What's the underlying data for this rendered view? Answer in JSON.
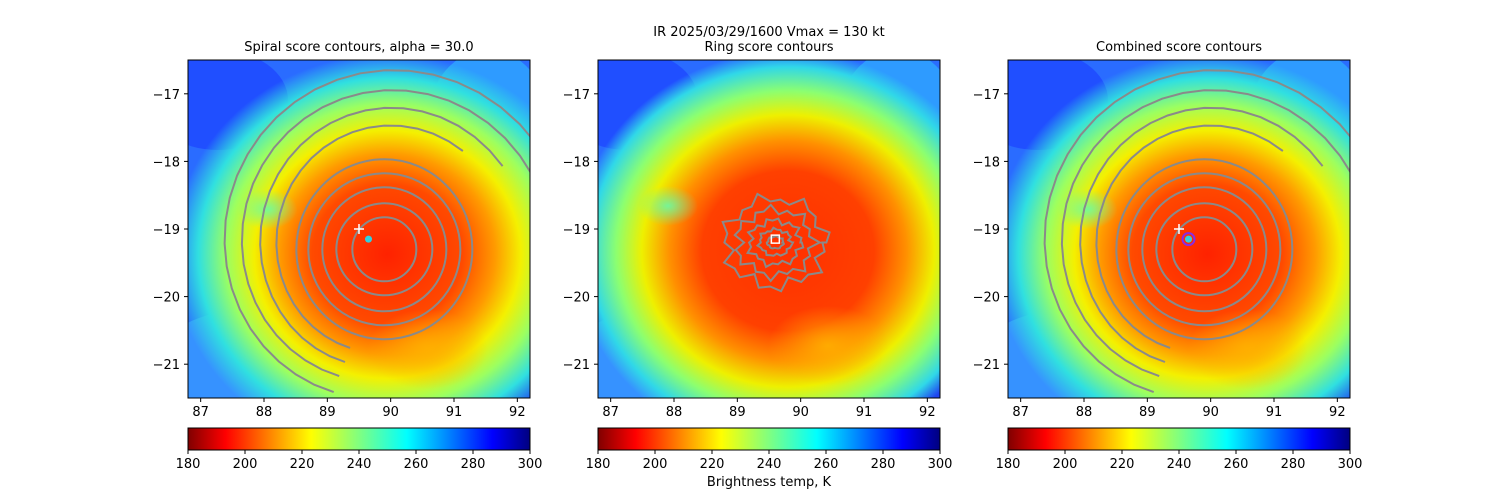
{
  "figure": {
    "suptitle": "IR  2025/03/29/1600    Vmax = 130 kt",
    "colorbar_label": "Brightness temp, K"
  },
  "chart_data": [
    {
      "type": "heatmap",
      "title": "Spiral score contours, alpha = 30.0",
      "xlim": [
        86.8,
        92.2
      ],
      "ylim": [
        -21.5,
        -16.5
      ],
      "xticks": [
        87,
        88,
        89,
        90,
        91,
        92
      ],
      "yticks": [
        -17,
        -18,
        -19,
        -20,
        -21
      ],
      "colorscale": "jet",
      "clim": [
        180,
        300
      ],
      "colorbar_ticks": [
        180,
        200,
        220,
        240,
        260,
        280,
        300
      ],
      "storm_center": [
        89.95,
        -19.3
      ],
      "contour_type": "spiral",
      "markers": [
        {
          "label": "+",
          "x": 89.5,
          "y": -19.0,
          "color": "#ffffff"
        },
        {
          "label": "cold spot",
          "x": 89.65,
          "y": -19.15,
          "color": "#30d0e0"
        }
      ]
    },
    {
      "type": "heatmap",
      "title": "Ring score contours",
      "xlim": [
        86.8,
        92.2
      ],
      "ylim": [
        -21.5,
        -16.5
      ],
      "xticks": [
        87,
        88,
        89,
        90,
        91,
        92
      ],
      "yticks": [
        -17,
        -18,
        -19,
        -20,
        -21
      ],
      "colorscale": "jet",
      "clim": [
        180,
        300
      ],
      "colorbar_ticks": [
        180,
        200,
        220,
        240,
        260,
        280,
        300
      ],
      "storm_center": [
        89.8,
        -19.25
      ],
      "contour_type": "ring",
      "markers": [
        {
          "label": "square",
          "x": 89.6,
          "y": -19.15,
          "color": "#ffffff"
        }
      ]
    },
    {
      "type": "heatmap",
      "title": "Combined score contours",
      "xlim": [
        86.8,
        92.2
      ],
      "ylim": [
        -21.5,
        -16.5
      ],
      "xticks": [
        87,
        88,
        89,
        90,
        91,
        92
      ],
      "yticks": [
        -17,
        -18,
        -19,
        -20,
        -21
      ],
      "colorscale": "jet",
      "clim": [
        180,
        300
      ],
      "colorbar_ticks": [
        180,
        200,
        220,
        240,
        260,
        280,
        300
      ],
      "storm_center": [
        89.95,
        -19.3
      ],
      "contour_type": "spiral",
      "markers": [
        {
          "label": "+",
          "x": 89.5,
          "y": -19.0,
          "color": "#ffffff"
        },
        {
          "label": "circle",
          "x": 89.65,
          "y": -19.15,
          "color": "#8a2be2"
        },
        {
          "label": "cold spot",
          "x": 89.65,
          "y": -19.15,
          "color": "#30d0e0"
        }
      ]
    }
  ]
}
